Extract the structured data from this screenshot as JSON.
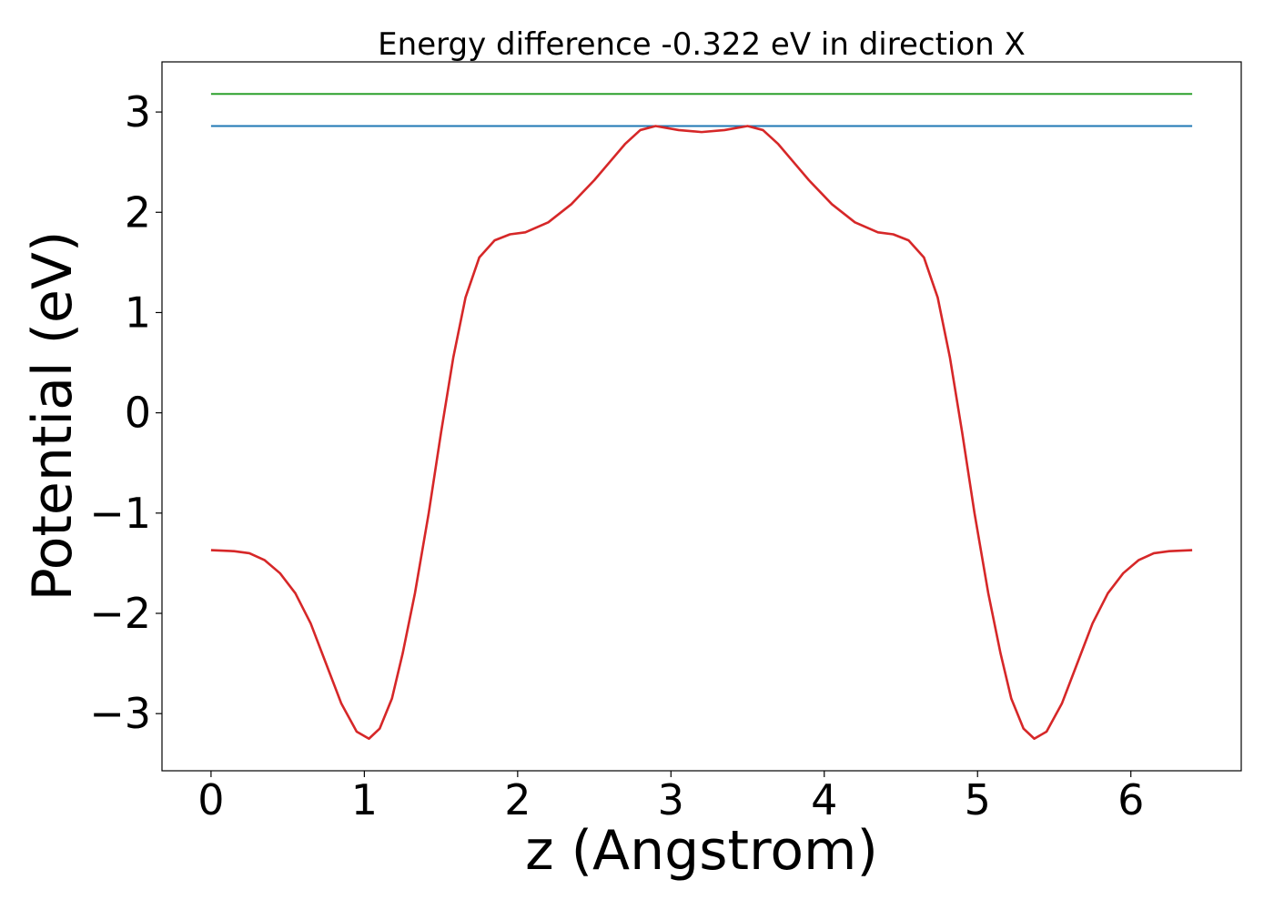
{
  "chart_data": {
    "type": "line",
    "title": "Energy difference -0.322 eV in direction X",
    "xlabel": "z (Angstrom)",
    "ylabel": "Potential (eV)",
    "xlim": [
      -0.32,
      6.72
    ],
    "ylim": [
      -3.57,
      3.5
    ],
    "xticks": [
      0,
      1,
      2,
      3,
      4,
      5,
      6
    ],
    "xtick_labels": [
      "0",
      "1",
      "2",
      "3",
      "4",
      "5",
      "6"
    ],
    "yticks": [
      -3,
      -2,
      -1,
      0,
      1,
      2,
      3
    ],
    "ytick_labels": [
      "−3",
      "−2",
      "−1",
      "0",
      "1",
      "2",
      "3"
    ],
    "grid": false,
    "series": [
      {
        "color": "#2ca02c",
        "x": [
          0,
          6.4
        ],
        "y": [
          3.18,
          3.18
        ]
      },
      {
        "color": "#1f77b4",
        "x": [
          0,
          6.4
        ],
        "y": [
          2.86,
          2.86
        ]
      },
      {
        "color": "#d62728",
        "x": [
          0,
          0.15,
          0.25,
          0.35,
          0.45,
          0.55,
          0.65,
          0.75,
          0.85,
          0.95,
          1.03,
          1.1,
          1.18,
          1.25,
          1.33,
          1.42,
          1.5,
          1.58,
          1.66,
          1.75,
          1.85,
          1.95,
          2.05,
          2.2,
          2.35,
          2.5,
          2.6,
          2.7,
          2.8,
          2.9,
          3.05,
          3.2,
          3.35,
          3.5,
          3.6,
          3.7,
          3.8,
          3.9,
          4.05,
          4.2,
          4.35,
          4.45,
          4.55,
          4.65,
          4.74,
          4.82,
          4.9,
          4.98,
          5.07,
          5.15,
          5.22,
          5.3,
          5.37,
          5.45,
          5.55,
          5.65,
          5.75,
          5.85,
          5.95,
          6.05,
          6.15,
          6.25,
          6.4
        ],
        "y": [
          -1.37,
          -1.38,
          -1.4,
          -1.47,
          -1.6,
          -1.8,
          -2.1,
          -2.5,
          -2.9,
          -3.18,
          -3.25,
          -3.15,
          -2.85,
          -2.4,
          -1.8,
          -1.0,
          -0.2,
          0.55,
          1.15,
          1.55,
          1.72,
          1.78,
          1.8,
          1.9,
          2.08,
          2.32,
          2.5,
          2.68,
          2.82,
          2.86,
          2.82,
          2.8,
          2.82,
          2.86,
          2.82,
          2.68,
          2.5,
          2.32,
          2.08,
          1.9,
          1.8,
          1.78,
          1.72,
          1.55,
          1.15,
          0.55,
          -0.2,
          -1.0,
          -1.8,
          -2.4,
          -2.85,
          -3.15,
          -3.25,
          -3.18,
          -2.9,
          -2.5,
          -2.1,
          -1.8,
          -1.6,
          -1.47,
          -1.4,
          -1.38,
          -1.37
        ]
      }
    ]
  }
}
